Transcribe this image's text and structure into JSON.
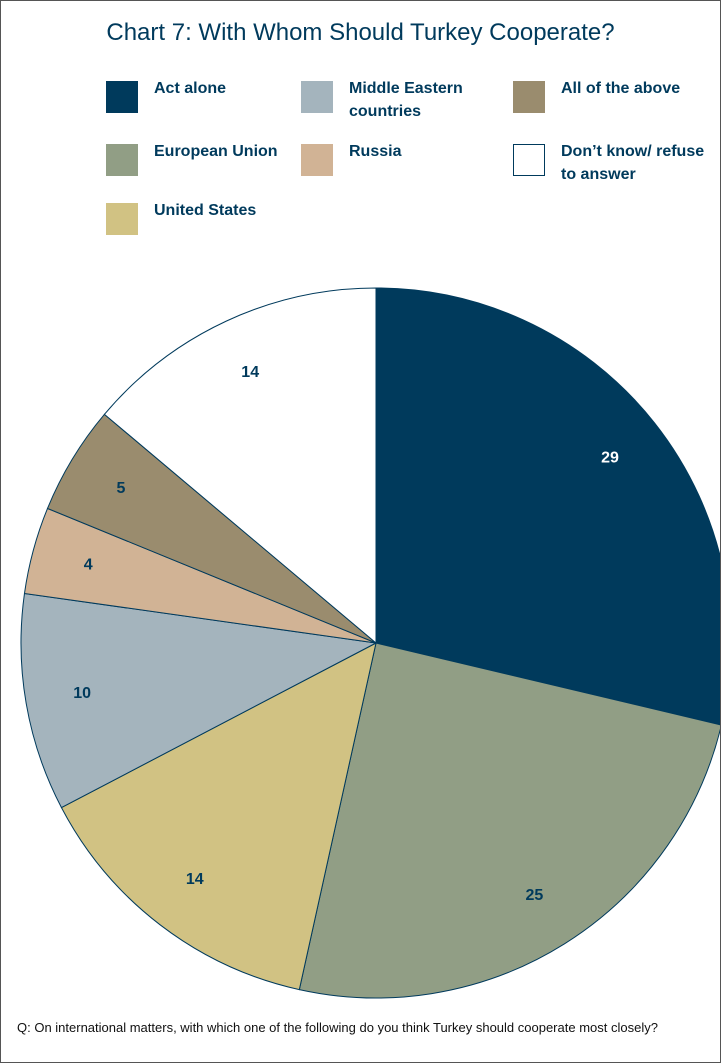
{
  "chart_data": {
    "type": "pie",
    "title": "Chart 7: With Whom Should Turkey Cooperate?",
    "series": [
      {
        "name": "Act alone",
        "color": "#003a5c",
        "values": [
          29
        ]
      },
      {
        "name": "European Union",
        "color": "#919e85",
        "values": [
          25
        ]
      },
      {
        "name": "United States",
        "color": "#d1c283",
        "values": [
          14
        ]
      },
      {
        "name": "Middle Eastern countries",
        "color": "#a4b4bd",
        "values": [
          10
        ]
      },
      {
        "name": "Russia",
        "color": "#d1b395",
        "values": [
          4
        ]
      },
      {
        "name": "All of the above",
        "color": "#9a8c6e",
        "values": [
          5
        ]
      },
      {
        "name": "Don’t know/ refuse to answer",
        "color": "#ffffff",
        "values": [
          14
        ]
      }
    ],
    "note": "Q: On international matters, with which one of the following do you think Turkey should cooperate most closely?"
  }
}
